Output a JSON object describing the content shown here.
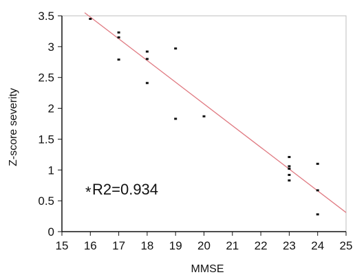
{
  "chart_data": {
    "type": "scatter",
    "xlabel": "MMSE",
    "ylabel": "Z-score severity",
    "xlim": [
      15,
      25
    ],
    "ylim": [
      0,
      3.5
    ],
    "x_ticks": [
      "15",
      "16",
      "17",
      "18",
      "19",
      "20",
      "21",
      "22",
      "23",
      "24",
      "25"
    ],
    "y_ticks": [
      "0",
      "0.5",
      "1",
      "1.5",
      "2",
      "2.5",
      "3",
      "3.5"
    ],
    "grid": false,
    "annotation": "R2=0.934",
    "annotation_marker": "*",
    "points": [
      {
        "x": 16,
        "y": 3.45
      },
      {
        "x": 17,
        "y": 3.23
      },
      {
        "x": 17,
        "y": 3.15
      },
      {
        "x": 17,
        "y": 2.79
      },
      {
        "x": 18,
        "y": 2.92
      },
      {
        "x": 18,
        "y": 2.8
      },
      {
        "x": 18,
        "y": 2.41
      },
      {
        "x": 19,
        "y": 2.97
      },
      {
        "x": 19,
        "y": 1.83
      },
      {
        "x": 20,
        "y": 1.87
      },
      {
        "x": 23,
        "y": 1.21
      },
      {
        "x": 23,
        "y": 1.06
      },
      {
        "x": 23,
        "y": 1.02
      },
      {
        "x": 23,
        "y": 0.92
      },
      {
        "x": 23,
        "y": 0.83
      },
      {
        "x": 24,
        "y": 1.1
      },
      {
        "x": 24,
        "y": 0.67
      },
      {
        "x": 24,
        "y": 0.28
      }
    ],
    "fit_line": {
      "x": [
        15.8,
        25
      ],
      "y": [
        3.55,
        0.31
      ]
    },
    "colors": {
      "points": "#111111",
      "fit_line": "#e07a82",
      "axes": "#111111",
      "frame": "#bdbdbd",
      "plot_background": "#ffffff",
      "page_background": "#ffffff"
    }
  }
}
